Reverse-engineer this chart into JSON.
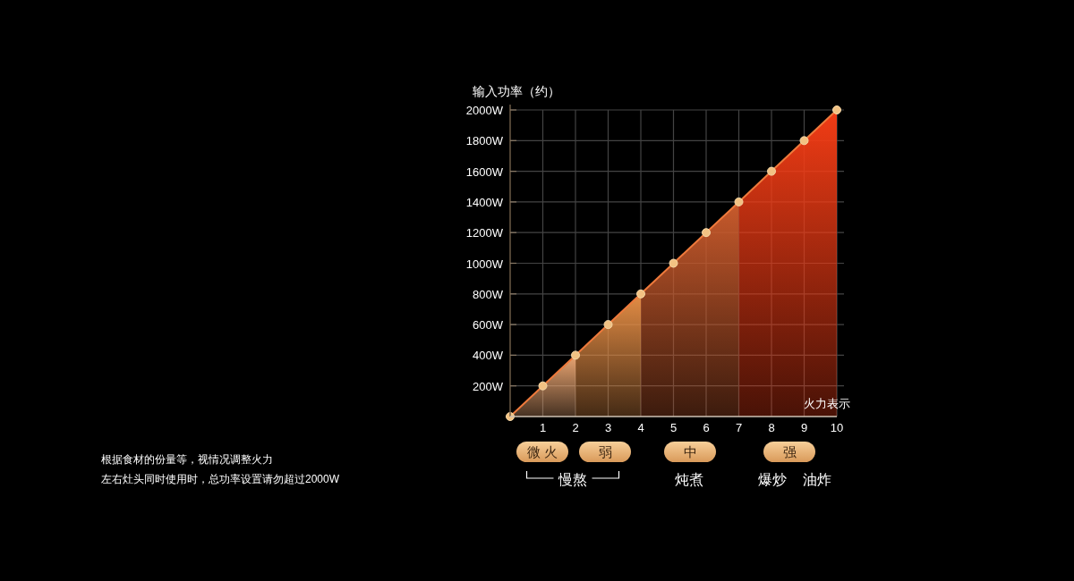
{
  "chart_data": {
    "type": "area",
    "xlabel": "火力表示",
    "ylabel": "输入功率（约）",
    "xlim": [
      0,
      10
    ],
    "xticks": [
      1,
      2,
      3,
      4,
      5,
      6,
      7,
      8,
      9,
      10
    ],
    "ylim": [
      0,
      2000
    ],
    "yticks": [
      {
        "value": 200,
        "label": "200W"
      },
      {
        "value": 400,
        "label": "400W"
      },
      {
        "value": 600,
        "label": "600W"
      },
      {
        "value": 800,
        "label": "800W"
      },
      {
        "value": 1000,
        "label": "1000W"
      },
      {
        "value": 1200,
        "label": "1200W"
      },
      {
        "value": 1400,
        "label": "1400W"
      },
      {
        "value": 1600,
        "label": "1600W"
      },
      {
        "value": 1800,
        "label": "1800W"
      },
      {
        "value": 2000,
        "label": "2000W"
      }
    ],
    "grid": true,
    "series": [
      {
        "type": "area",
        "color": "#eba672",
        "x": [
          0,
          1,
          2
        ],
        "values": [
          0,
          200,
          400
        ]
      },
      {
        "type": "area",
        "color": "#e48d45",
        "x": [
          2,
          3,
          4
        ],
        "values": [
          400,
          600,
          800
        ]
      },
      {
        "type": "area",
        "color": "#c85a2c",
        "x": [
          4,
          5,
          6,
          7
        ],
        "values": [
          800,
          1000,
          1200,
          1400
        ]
      },
      {
        "type": "area",
        "color": "#f23c15",
        "x": [
          7,
          8,
          9,
          10
        ],
        "values": [
          1400,
          1600,
          1800,
          2000
        ]
      },
      {
        "type": "line",
        "color": "#f2c283",
        "marker": "circle",
        "x": [
          0,
          1,
          2,
          3,
          4,
          5,
          6,
          7,
          8,
          9,
          10
        ],
        "values": [
          0,
          200,
          400,
          600,
          800,
          1000,
          1200,
          1400,
          1600,
          1800,
          2000
        ]
      }
    ],
    "annotations": [
      "微 火",
      "弱",
      "中",
      "强",
      "慢熬",
      "炖煮",
      "爆炒",
      "油炸",
      "根据食材的份量等，视情况调整火力",
      "左右灶头同时使用时，总功率设置请勿超过2000W"
    ]
  }
}
